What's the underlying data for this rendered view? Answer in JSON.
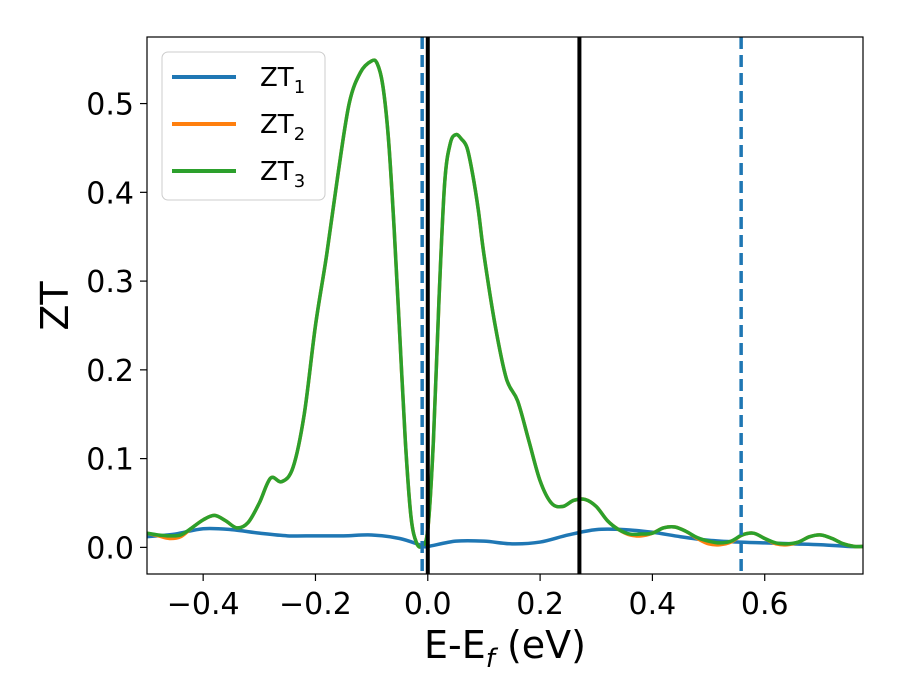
{
  "chart_data": {
    "type": "line",
    "xlabel": {
      "main": "E-E",
      "sub": "f",
      "tail": " (eV)"
    },
    "ylabel": "ZT",
    "xlim": [
      -0.5,
      0.775
    ],
    "ylim": [
      -0.03,
      0.575
    ],
    "x_ticks": [
      {
        "value": -0.4,
        "label": "−0.4"
      },
      {
        "value": -0.2,
        "label": "−0.2"
      },
      {
        "value": 0.0,
        "label": "0.0"
      },
      {
        "value": 0.2,
        "label": "0.2"
      },
      {
        "value": 0.4,
        "label": "0.4"
      },
      {
        "value": 0.6,
        "label": "0.6"
      }
    ],
    "y_ticks": [
      {
        "value": 0.0,
        "label": "0.0"
      },
      {
        "value": 0.1,
        "label": "0.1"
      },
      {
        "value": 0.2,
        "label": "0.2"
      },
      {
        "value": 0.3,
        "label": "0.3"
      },
      {
        "value": 0.4,
        "label": "0.4"
      },
      {
        "value": 0.5,
        "label": "0.5"
      }
    ],
    "grid": false,
    "legend_position": "top-left",
    "series": [
      {
        "name": "ZT",
        "sub": "1",
        "color": "#1f77b4",
        "x": [
          -0.5,
          -0.45,
          -0.4,
          -0.35,
          -0.3,
          -0.25,
          -0.2,
          -0.15,
          -0.1,
          -0.05,
          -0.01,
          0.0,
          0.05,
          0.1,
          0.15,
          0.2,
          0.25,
          0.3,
          0.35,
          0.4,
          0.45,
          0.5,
          0.55,
          0.6,
          0.65,
          0.7,
          0.75,
          0.775
        ],
        "y": [
          0.012,
          0.015,
          0.021,
          0.02,
          0.016,
          0.013,
          0.013,
          0.013,
          0.014,
          0.01,
          0.002,
          0.001,
          0.007,
          0.007,
          0.004,
          0.006,
          0.014,
          0.02,
          0.02,
          0.017,
          0.012,
          0.008,
          0.006,
          0.005,
          0.004,
          0.003,
          0.001,
          0.001
        ]
      },
      {
        "name": "ZT",
        "sub": "2",
        "color": "#ff7f0e",
        "x": [
          -0.5,
          -0.48,
          -0.46,
          -0.44,
          -0.42,
          -0.4,
          -0.38,
          -0.36,
          -0.34,
          -0.32,
          -0.3,
          -0.28,
          -0.26,
          -0.24,
          -0.22,
          -0.2,
          -0.18,
          -0.16,
          -0.14,
          -0.12,
          -0.1,
          -0.09,
          -0.08,
          -0.07,
          -0.06,
          -0.05,
          -0.04,
          -0.03,
          -0.02,
          -0.01,
          0.0,
          0.01,
          0.02,
          0.03,
          0.04,
          0.05,
          0.06,
          0.07,
          0.08,
          0.09,
          0.1,
          0.12,
          0.14,
          0.16,
          0.18,
          0.2,
          0.22,
          0.24,
          0.26,
          0.28,
          0.3,
          0.32,
          0.34,
          0.36,
          0.38,
          0.4,
          0.42,
          0.44,
          0.46,
          0.48,
          0.5,
          0.52,
          0.54,
          0.56,
          0.58,
          0.6,
          0.62,
          0.64,
          0.66,
          0.68,
          0.7,
          0.72,
          0.74,
          0.76,
          0.775
        ],
        "y": [
          0.016,
          0.013,
          0.01,
          0.012,
          0.022,
          0.031,
          0.036,
          0.03,
          0.022,
          0.028,
          0.05,
          0.078,
          0.074,
          0.09,
          0.15,
          0.25,
          0.33,
          0.42,
          0.5,
          0.535,
          0.548,
          0.545,
          0.52,
          0.46,
          0.36,
          0.24,
          0.12,
          0.035,
          0.005,
          0.002,
          0.02,
          0.12,
          0.28,
          0.41,
          0.455,
          0.465,
          0.46,
          0.45,
          0.42,
          0.38,
          0.33,
          0.25,
          0.19,
          0.165,
          0.12,
          0.075,
          0.05,
          0.046,
          0.053,
          0.054,
          0.046,
          0.03,
          0.02,
          0.014,
          0.013,
          0.016,
          0.022,
          0.023,
          0.018,
          0.01,
          0.004,
          0.003,
          0.006,
          0.014,
          0.016,
          0.01,
          0.004,
          0.003,
          0.006,
          0.012,
          0.014,
          0.01,
          0.004,
          0.001,
          0.001
        ]
      },
      {
        "name": "ZT",
        "sub": "3",
        "color": "#2ca02c",
        "x": [
          -0.5,
          -0.48,
          -0.46,
          -0.44,
          -0.42,
          -0.4,
          -0.38,
          -0.36,
          -0.34,
          -0.32,
          -0.3,
          -0.28,
          -0.26,
          -0.24,
          -0.22,
          -0.2,
          -0.18,
          -0.16,
          -0.14,
          -0.12,
          -0.1,
          -0.09,
          -0.08,
          -0.07,
          -0.06,
          -0.05,
          -0.04,
          -0.03,
          -0.02,
          -0.01,
          0.0,
          0.01,
          0.02,
          0.03,
          0.04,
          0.05,
          0.06,
          0.07,
          0.08,
          0.09,
          0.1,
          0.12,
          0.14,
          0.16,
          0.18,
          0.2,
          0.22,
          0.24,
          0.26,
          0.28,
          0.3,
          0.32,
          0.34,
          0.36,
          0.38,
          0.4,
          0.42,
          0.44,
          0.46,
          0.48,
          0.5,
          0.52,
          0.54,
          0.56,
          0.58,
          0.6,
          0.62,
          0.64,
          0.66,
          0.68,
          0.7,
          0.72,
          0.74,
          0.76,
          0.775
        ],
        "y": [
          0.016,
          0.014,
          0.013,
          0.014,
          0.022,
          0.031,
          0.036,
          0.03,
          0.022,
          0.028,
          0.05,
          0.078,
          0.074,
          0.09,
          0.15,
          0.25,
          0.33,
          0.42,
          0.5,
          0.535,
          0.548,
          0.545,
          0.52,
          0.46,
          0.36,
          0.24,
          0.12,
          0.035,
          0.005,
          0.002,
          0.02,
          0.12,
          0.28,
          0.41,
          0.455,
          0.465,
          0.46,
          0.45,
          0.42,
          0.38,
          0.33,
          0.25,
          0.19,
          0.165,
          0.12,
          0.075,
          0.05,
          0.046,
          0.053,
          0.054,
          0.046,
          0.03,
          0.02,
          0.015,
          0.015,
          0.016,
          0.022,
          0.023,
          0.018,
          0.011,
          0.007,
          0.005,
          0.007,
          0.014,
          0.016,
          0.01,
          0.005,
          0.004,
          0.006,
          0.012,
          0.014,
          0.01,
          0.004,
          0.001,
          0.001
        ]
      }
    ],
    "reference_lines": [
      {
        "x": 0.0,
        "style": "solid",
        "color": "#000000"
      },
      {
        "x": 0.27,
        "style": "solid",
        "color": "#000000"
      },
      {
        "x": -0.01,
        "style": "dashed",
        "color": "#1f77b4"
      },
      {
        "x": 0.558,
        "style": "dashed",
        "color": "#1f77b4"
      }
    ]
  }
}
